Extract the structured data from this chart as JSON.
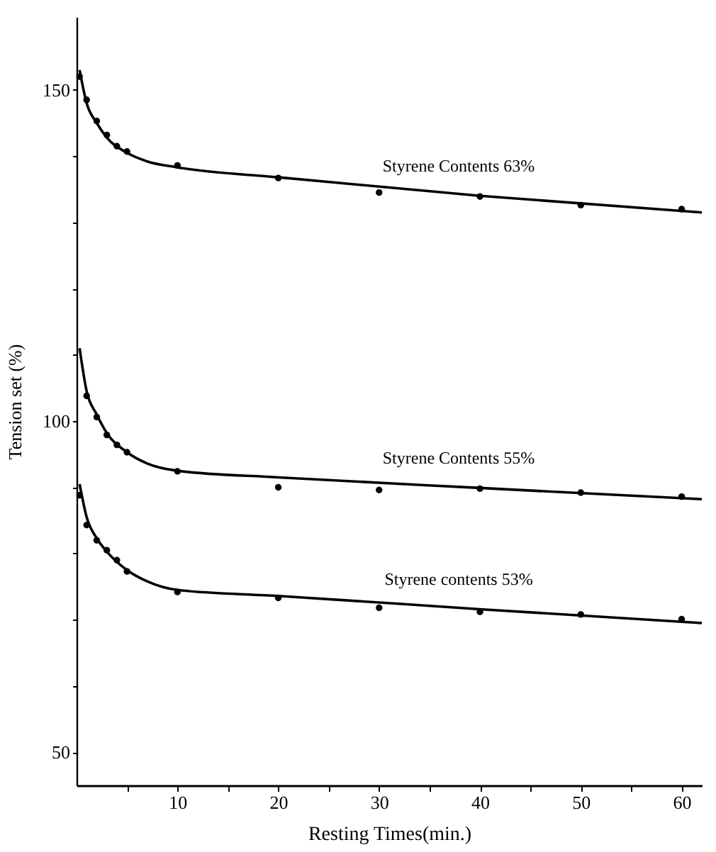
{
  "chart_data": {
    "type": "scatter",
    "xlabel": "Resting Times(min.)",
    "ylabel": "Tension set (%)",
    "xlim": [
      0,
      62
    ],
    "ylim": [
      45,
      161
    ],
    "xticks": [
      {
        "value": 5,
        "label": null
      },
      10,
      {
        "value": 15,
        "label": null
      },
      20,
      {
        "value": 25,
        "label": null
      },
      30,
      {
        "value": 35,
        "label": null
      },
      40,
      {
        "value": 45,
        "label": null
      },
      50,
      {
        "value": 55,
        "label": null
      },
      60
    ],
    "yticks": [
      50,
      {
        "value": 60,
        "label": null
      },
      {
        "value": 70,
        "label": null
      },
      {
        "value": 80,
        "label": null
      },
      {
        "value": 90,
        "label": null
      },
      100,
      {
        "value": 110,
        "label": null
      },
      {
        "value": 120,
        "label": null
      },
      {
        "value": 130,
        "label": null
      },
      {
        "value": 140,
        "label": null
      },
      150
    ],
    "grid": false,
    "marker": "circle",
    "series": [
      {
        "color": "#000000",
        "x": [
          0.3,
          1,
          2,
          3,
          4,
          5,
          10,
          20,
          30,
          40,
          50,
          60
        ],
        "values": [
          152,
          148.5,
          145.3,
          143.2,
          141.5,
          140.7,
          138.6,
          136.7,
          134.5,
          133.9,
          132.6,
          132
        ]
      },
      {
        "type": "line",
        "name": "Styrene Contents    63%",
        "marker": "none",
        "color": "#000000",
        "x": [
          0.3,
          1,
          2,
          3,
          5,
          7,
          10,
          20,
          40,
          62
        ],
        "values": [
          153,
          148,
          145,
          142.8,
          140.5,
          139.2,
          138.3,
          136.8,
          134,
          131.5
        ]
      },
      {
        "color": "#000000",
        "x": [
          1,
          2,
          3,
          4,
          5,
          10,
          20,
          30,
          40,
          50,
          60
        ],
        "values": [
          103.8,
          100.6,
          97.9,
          96.4,
          95.3,
          92.4,
          90,
          89.6,
          89.8,
          89.2,
          88.6
        ]
      },
      {
        "type": "line",
        "name": "Styrene Contents    55%",
        "marker": "none",
        "color": "#000000",
        "x": [
          0.3,
          1,
          2,
          3,
          5,
          7,
          10,
          20,
          40,
          62
        ],
        "values": [
          111,
          104.5,
          101,
          98.2,
          95.3,
          93.6,
          92.5,
          91.5,
          89.9,
          88.2
        ]
      },
      {
        "color": "#000000",
        "x": [
          0.3,
          1,
          2,
          3,
          4,
          5,
          10,
          20,
          30,
          40,
          50,
          60
        ],
        "values": [
          88.8,
          84.3,
          82,
          80.5,
          79,
          77.3,
          74.2,
          73.3,
          71.8,
          71.2,
          70.8,
          70.1
        ]
      },
      {
        "type": "line",
        "name": "Styrene contents    53%",
        "marker": "none",
        "color": "#000000",
        "x": [
          0.3,
          1,
          2,
          3,
          5,
          7,
          10,
          20,
          40,
          62
        ],
        "values": [
          90.5,
          85.5,
          82.3,
          80.3,
          77.5,
          75.8,
          74.5,
          73.6,
          71.6,
          69.5
        ]
      }
    ]
  }
}
